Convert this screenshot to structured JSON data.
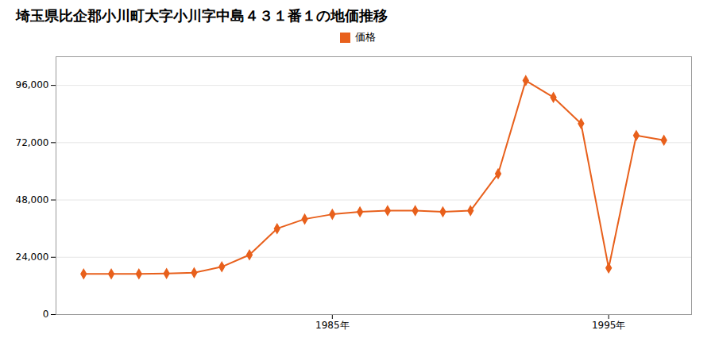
{
  "chart_data": {
    "type": "line",
    "title": "埼玉県比企郡小川町大字小川字中島４３１番１の地価推移",
    "x": [
      1976,
      1977,
      1978,
      1979,
      1980,
      1981,
      1982,
      1983,
      1984,
      1985,
      1986,
      1987,
      1988,
      1989,
      1990,
      1991,
      1992,
      1993,
      1994,
      1995,
      1996,
      1997
    ],
    "series": [
      {
        "name": "価格",
        "color": "#e8601c",
        "marker": "diamond",
        "values": [
          17000,
          17000,
          17000,
          17200,
          17500,
          20000,
          25000,
          36000,
          40000,
          42000,
          43000,
          43500,
          43500,
          43000,
          43500,
          59000,
          98000,
          91000,
          80000,
          19500,
          75000,
          73000
        ]
      }
    ],
    "xlim": [
      1975,
      1998
    ],
    "xticks": [
      {
        "value": 1985,
        "label": "1985年"
      },
      {
        "value": 1995,
        "label": "1995年"
      }
    ],
    "ylim": [
      0,
      108000
    ],
    "yticks": [
      0,
      {
        "value": 24000,
        "label": "24,000"
      },
      {
        "value": 48000,
        "label": "48,000"
      },
      {
        "value": 72000,
        "label": "72,000"
      },
      {
        "value": 96000,
        "label": "96,000"
      }
    ],
    "grid": "y",
    "legend": "top"
  }
}
